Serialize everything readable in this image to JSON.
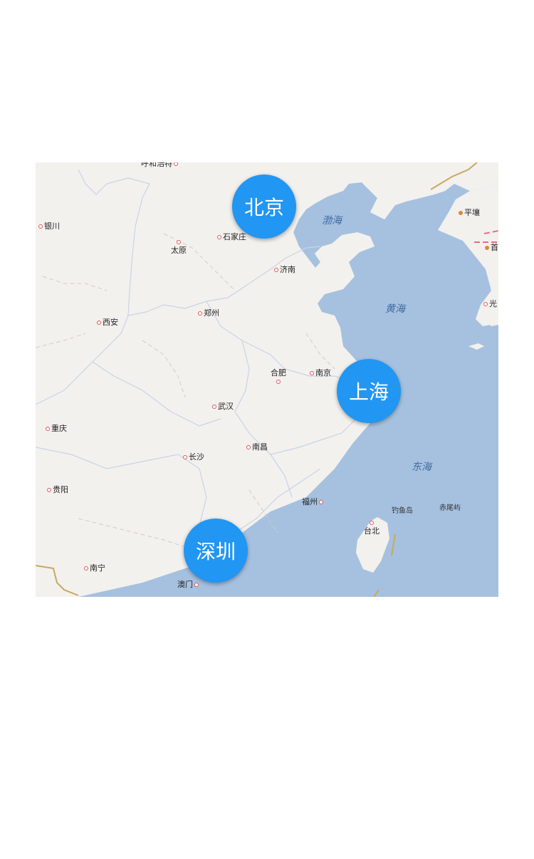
{
  "colors": {
    "sea": "#a6c1df",
    "land": "#f3f1ee",
    "marker": "#2196f3",
    "border_line": "#c8a860"
  },
  "markers": [
    {
      "label": "北京"
    },
    {
      "label": "上海"
    },
    {
      "label": "深圳"
    }
  ],
  "cities": [
    {
      "name": "呼和浩特"
    },
    {
      "name": "银川"
    },
    {
      "name": "太原"
    },
    {
      "name": "石家庄"
    },
    {
      "name": "济南"
    },
    {
      "name": "西安"
    },
    {
      "name": "郑州"
    },
    {
      "name": "合肥"
    },
    {
      "name": "南京"
    },
    {
      "name": "武汉"
    },
    {
      "name": "重庆"
    },
    {
      "name": "长沙"
    },
    {
      "name": "南昌"
    },
    {
      "name": "贵阳"
    },
    {
      "name": "福州"
    },
    {
      "name": "台北"
    },
    {
      "name": "南宁"
    },
    {
      "name": "澳门"
    },
    {
      "name": "平壤"
    },
    {
      "name": "首"
    },
    {
      "name": "光"
    }
  ],
  "seas": [
    {
      "name": "渤海"
    },
    {
      "name": "黄海"
    },
    {
      "name": "东海"
    }
  ],
  "islands": [
    {
      "name": "钓鱼岛"
    },
    {
      "name": "赤尾屿"
    }
  ]
}
